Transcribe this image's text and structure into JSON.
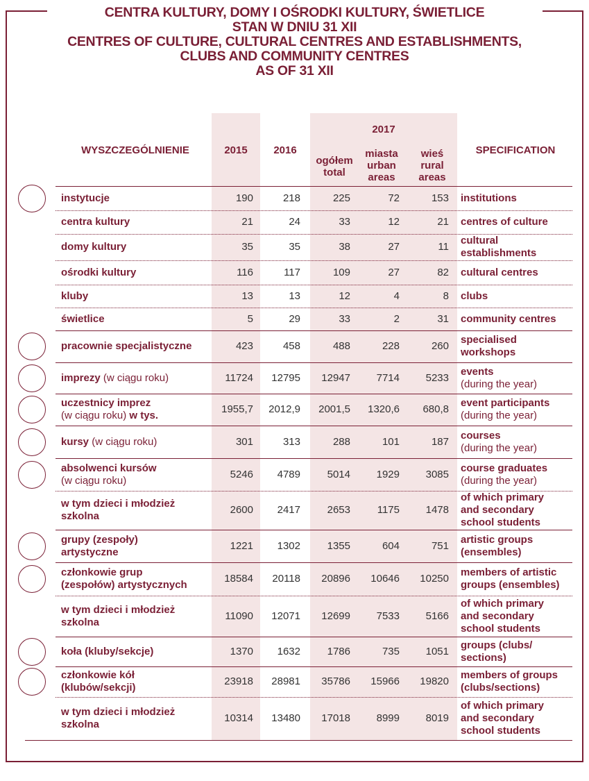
{
  "header": {
    "title_lines": [
      "CENTRA KULTURY, DOMY I OŚRODKI KULTURY, ŚWIETLICE",
      "STAN W DNIU 31 XII",
      "CENTRES OF CULTURE, CULTURAL CENTRES AND ESTABLISHMENTS,",
      "CLUBS AND COMMUNITY CENTRES",
      "AS OF 31 XII"
    ]
  },
  "table": {
    "columns": {
      "spec_pl": "WYSZCZEGÓLNIENIE",
      "y2015": "2015",
      "y2016": "2016",
      "y2017": "2017",
      "total": [
        "ogółem",
        "total"
      ],
      "urban": [
        "miasta",
        "urban",
        "areas"
      ],
      "rural": [
        "wieś",
        "rural",
        "areas"
      ],
      "spec_en": "SPECIFICATION"
    },
    "rows": [
      {
        "group_start": true,
        "pl": [
          [
            {
              "text": "instytucje"
            }
          ]
        ],
        "values": [
          190,
          218,
          225,
          72,
          153
        ],
        "en": [
          "institutions"
        ]
      },
      {
        "group_start": false,
        "pl": [
          [
            {
              "text": "centra kultury"
            }
          ]
        ],
        "values": [
          21,
          24,
          33,
          12,
          21
        ],
        "en": [
          "centres of culture"
        ]
      },
      {
        "group_start": false,
        "pl": [
          [
            {
              "text": "domy kultury"
            }
          ]
        ],
        "values": [
          35,
          35,
          38,
          27,
          11
        ],
        "en": [
          "cultural",
          "establishments"
        ]
      },
      {
        "group_start": false,
        "pl": [
          [
            {
              "text": "ośrodki kultury"
            }
          ]
        ],
        "values": [
          116,
          117,
          109,
          27,
          82
        ],
        "en": [
          "cultural centres"
        ]
      },
      {
        "group_start": false,
        "pl": [
          [
            {
              "text": "kluby"
            }
          ]
        ],
        "values": [
          13,
          13,
          12,
          4,
          8
        ],
        "en": [
          "clubs"
        ]
      },
      {
        "group_start": false,
        "pl": [
          [
            {
              "text": "świetlice"
            }
          ]
        ],
        "values": [
          5,
          29,
          33,
          2,
          31
        ],
        "en": [
          "community centres"
        ]
      },
      {
        "group_start": true,
        "pl": [
          [
            {
              "text": "pracownie specjalistyczne"
            }
          ]
        ],
        "values": [
          423,
          458,
          488,
          228,
          260
        ],
        "en": [
          "specialised",
          "workshops"
        ]
      },
      {
        "group_start": true,
        "pl": [
          [
            {
              "text": "imprezy"
            },
            {
              "text": " (w ciągu roku)",
              "light": true
            }
          ]
        ],
        "values": [
          11724,
          12795,
          12947,
          7714,
          5233
        ],
        "en": [
          "events",
          {
            "text": "(during the year)",
            "light": true
          }
        ]
      },
      {
        "group_start": true,
        "pl": [
          [
            {
              "text": "uczestnicy imprez"
            }
          ],
          [
            {
              "text": "(w ciągu roku)",
              "light": true
            },
            {
              "text": " w tys."
            }
          ]
        ],
        "values": [
          "1955,7",
          "2012,9",
          "2001,5",
          "1320,6",
          "680,8"
        ],
        "en": [
          "event participants",
          {
            "text": "(during the year)",
            "light": true
          }
        ]
      },
      {
        "group_start": true,
        "pl": [
          [
            {
              "text": "kursy"
            },
            {
              "text": " (w ciągu roku)",
              "light": true
            }
          ]
        ],
        "values": [
          301,
          313,
          288,
          101,
          187
        ],
        "en": [
          "courses",
          {
            "text": "(during the year)",
            "light": true
          }
        ]
      },
      {
        "group_start": true,
        "pl": [
          [
            {
              "text": "absolwenci kursów"
            }
          ],
          [
            {
              "text": "(w ciągu roku)",
              "light": true
            }
          ]
        ],
        "values": [
          5246,
          4789,
          5014,
          1929,
          3085
        ],
        "en": [
          "course graduates",
          {
            "text": "(during the year)",
            "light": true
          }
        ]
      },
      {
        "group_start": false,
        "pl": [
          [
            {
              "text": "w tym dzieci i młodzież"
            }
          ],
          [
            {
              "text": "szkolna"
            }
          ]
        ],
        "values": [
          2600,
          2417,
          2653,
          1175,
          1478
        ],
        "en": [
          "of which primary",
          "and secondary",
          "school students"
        ]
      },
      {
        "group_start": true,
        "pl": [
          [
            {
              "text": "grupy (zespoły)"
            }
          ],
          [
            {
              "text": "artystyczne"
            }
          ]
        ],
        "values": [
          1221,
          1302,
          1355,
          604,
          751
        ],
        "en": [
          "artistic groups",
          "(ensembles)"
        ]
      },
      {
        "group_start": true,
        "pl": [
          [
            {
              "text": "członkowie grup"
            }
          ],
          [
            {
              "text": "(zespołów) artystycznych"
            }
          ]
        ],
        "values": [
          18584,
          20118,
          20896,
          10646,
          10250
        ],
        "en": [
          "members of artistic",
          "groups (ensembles)"
        ]
      },
      {
        "group_start": false,
        "pl": [
          [
            {
              "text": "w tym dzieci i młodzież"
            }
          ],
          [
            {
              "text": "szkolna"
            }
          ]
        ],
        "values": [
          11090,
          12071,
          12699,
          7533,
          5166
        ],
        "en": [
          "of which primary",
          "and secondary",
          "school students"
        ]
      },
      {
        "group_start": true,
        "pl": [
          [
            {
              "text": "koła (kluby/sekcje)"
            }
          ]
        ],
        "values": [
          1370,
          1632,
          1786,
          735,
          1051
        ],
        "en": [
          "groups (clubs/",
          "sections)"
        ]
      },
      {
        "group_start": true,
        "pl": [
          [
            {
              "text": "członkowie kół"
            }
          ],
          [
            {
              "text": "(klubów/sekcji)"
            }
          ]
        ],
        "values": [
          23918,
          28981,
          35786,
          15966,
          19820
        ],
        "en": [
          "members of groups",
          "(clubs/sections)"
        ]
      },
      {
        "group_start": false,
        "pl": [
          [
            {
              "text": "w tym dzieci i młodzież"
            }
          ],
          [
            {
              "text": "szkolna"
            }
          ]
        ],
        "values": [
          10314,
          13480,
          17018,
          8999,
          8019
        ],
        "en": [
          "of which primary",
          "and secondary",
          "school students"
        ]
      }
    ]
  }
}
